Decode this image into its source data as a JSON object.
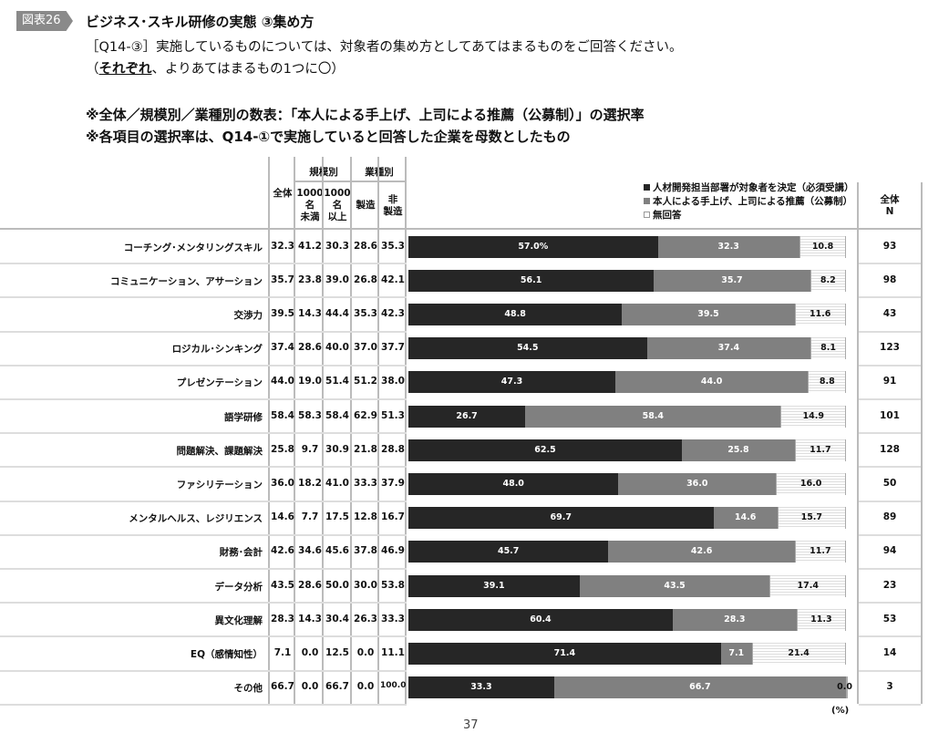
{
  "figure_label": "図表26",
  "title": "ビジネス･スキル研修の実態 ③集め方",
  "question_line1": "［Q14-③］実施しているものについては、対象者の集め方としてあてはまるものをご回答ください。",
  "question_line2_underlined": "それぞれ",
  "question_line2_open": "（",
  "question_line2_rest": "、よりあてはまるもの1つに〇）",
  "note1": "※全体／規模別／業種別の数表：「本人による手上げ、上司による推薦（公募制）」の選択率",
  "note2": "※各項目の選択率は、Q14-①で実施していると回答した企業を母数としたもの",
  "table_headers": {
    "total": "全体",
    "size_group": "規模別",
    "under1000": "1000\n名\n未満",
    "over1000": "1000\n名\n以上",
    "industry_group": "業種別",
    "manufacturing": "製造",
    "non_manufacturing": "非\n製造",
    "n_header": "全体\nN"
  },
  "unit": "(%)",
  "page_number": "37",
  "colors": {
    "must": "#262626",
    "self": "#808080",
    "none": "#ffffff"
  },
  "chart_data": {
    "type": "bar",
    "stacked": true,
    "orientation": "horizontal",
    "xlim": [
      0,
      100
    ],
    "legend_placement": "top-right",
    "series": [
      {
        "name": "人材開発担当部署が対象者を決定（必須受講）",
        "values": [
          57.0,
          56.1,
          48.8,
          54.5,
          47.3,
          26.7,
          62.5,
          48.0,
          69.7,
          45.7,
          39.1,
          60.4,
          71.4,
          33.3
        ]
      },
      {
        "name": "本人による手上げ、上司による推薦（公募制）",
        "values": [
          32.3,
          35.7,
          39.5,
          37.4,
          44.0,
          58.4,
          25.8,
          36.0,
          14.6,
          42.6,
          43.5,
          28.3,
          7.1,
          66.7
        ]
      },
      {
        "name": "無回答",
        "values": [
          10.8,
          8.2,
          11.6,
          8.1,
          8.8,
          14.9,
          11.7,
          16.0,
          15.7,
          11.7,
          17.4,
          11.3,
          21.4,
          0.0
        ]
      }
    ],
    "value_labels": [
      [
        "57.0%",
        "32.3",
        "10.8"
      ],
      [
        "56.1",
        "35.7",
        "8.2"
      ],
      [
        "48.8",
        "39.5",
        "11.6"
      ],
      [
        "54.5",
        "37.4",
        "8.1"
      ],
      [
        "47.3",
        "44.0",
        "8.8"
      ],
      [
        "26.7",
        "58.4",
        "14.9"
      ],
      [
        "62.5",
        "25.8",
        "11.7"
      ],
      [
        "48.0",
        "36.0",
        "16.0"
      ],
      [
        "69.7",
        "14.6",
        "15.7"
      ],
      [
        "45.7",
        "42.6",
        "11.7"
      ],
      [
        "39.1",
        "43.5",
        "17.4"
      ],
      [
        "60.4",
        "28.3",
        "11.3"
      ],
      [
        "71.4",
        "7.1",
        "21.4"
      ],
      [
        "33.3",
        "66.7",
        "0.0"
      ]
    ],
    "categories": [
      "コーチング･メンタリングスキル",
      "コミュニケーション、アサーション",
      "交渉力",
      "ロジカル･シンキング",
      "プレゼンテーション",
      "語学研修",
      "問題解決、課題解決",
      "ファシリテーション",
      "メンタルヘルス、レジリエンス",
      "財務･会計",
      "データ分析",
      "異文化理解",
      "EQ（感情知性）",
      "その他"
    ],
    "table": [
      [
        "32.3",
        "41.2",
        "30.3",
        "28.6",
        "35.3"
      ],
      [
        "35.7",
        "23.8",
        "39.0",
        "26.8",
        "42.1"
      ],
      [
        "39.5",
        "14.3",
        "44.4",
        "35.3",
        "42.3"
      ],
      [
        "37.4",
        "28.6",
        "40.0",
        "37.0",
        "37.7"
      ],
      [
        "44.0",
        "19.0",
        "51.4",
        "51.2",
        "38.0"
      ],
      [
        "58.4",
        "58.3",
        "58.4",
        "62.9",
        "51.3"
      ],
      [
        "25.8",
        "9.7",
        "30.9",
        "21.8",
        "28.8"
      ],
      [
        "36.0",
        "18.2",
        "41.0",
        "33.3",
        "37.9"
      ],
      [
        "14.6",
        "7.7",
        "17.5",
        "12.8",
        "16.7"
      ],
      [
        "42.6",
        "34.6",
        "45.6",
        "37.8",
        "46.9"
      ],
      [
        "43.5",
        "28.6",
        "50.0",
        "30.0",
        "53.8"
      ],
      [
        "28.3",
        "14.3",
        "30.4",
        "26.3",
        "33.3"
      ],
      [
        "7.1",
        "0.0",
        "12.5",
        "0.0",
        "11.1"
      ],
      [
        "66.7",
        "0.0",
        "66.7",
        "0.0",
        "100.0"
      ]
    ],
    "n": [
      "93",
      "98",
      "43",
      "123",
      "91",
      "101",
      "128",
      "50",
      "89",
      "94",
      "23",
      "53",
      "14",
      "3"
    ]
  }
}
